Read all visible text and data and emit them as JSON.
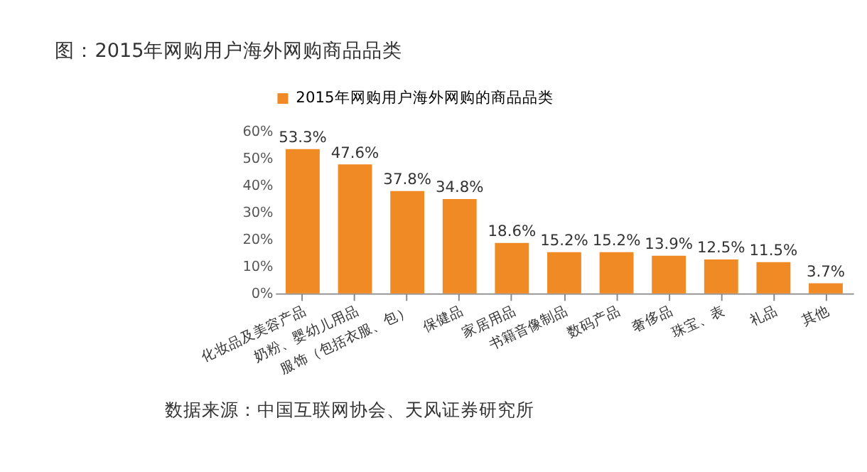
{
  "chart_data": {
    "type": "bar",
    "title": "图：2015年网购用户海外网购商品品类",
    "categories": [
      "化妆品及美容产品",
      "奶粉、婴幼儿用品",
      "服饰（包括衣服、包）",
      "保健品",
      "家居用品",
      "书籍音像制品",
      "数码产品",
      "奢侈品",
      "珠宝、表",
      "礼品",
      "其他"
    ],
    "series": [
      {
        "name": "2015年网购用户海外网购的商品品类",
        "color": "#f08a24",
        "values": [
          53.3,
          47.6,
          37.8,
          34.8,
          18.6,
          15.2,
          15.2,
          13.9,
          12.5,
          11.5,
          3.7
        ]
      }
    ],
    "value_labels": [
      "53.3%",
      "47.6%",
      "37.8%",
      "34.8%",
      "18.6%",
      "15.2%",
      "15.2%",
      "13.9%",
      "12.5%",
      "11.5%",
      "3.7%"
    ],
    "ylim": [
      0,
      60
    ],
    "yticks": [
      {
        "value": 0,
        "label": "0%"
      },
      {
        "value": 10,
        "label": "10%"
      },
      {
        "value": 20,
        "label": "20%"
      },
      {
        "value": 30,
        "label": "30%"
      },
      {
        "value": 40,
        "label": "40%"
      },
      {
        "value": 50,
        "label": "50%"
      },
      {
        "value": 60,
        "label": "60%"
      }
    ],
    "grid": false,
    "legend": "top",
    "annotations": [
      "数据来源：中国互联网协会、天风证券研究所"
    ]
  }
}
